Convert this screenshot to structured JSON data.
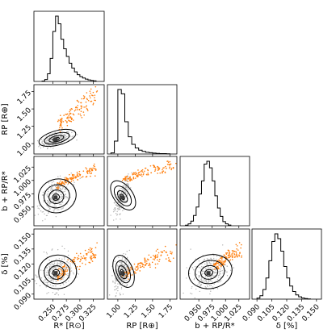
{
  "chart_data": {
    "type": "scatter",
    "subtype": "corner-plot",
    "colors": {
      "samples": "#b5b5b5",
      "outliers": "#ff7f0e",
      "lines": "#000000",
      "density_dark": "#3a3a3a"
    },
    "parameters": [
      {
        "key": "Rs",
        "label": "R* [R⊙]",
        "range": [
          0.215,
          0.345
        ],
        "ticks": [
          0.25,
          0.275,
          0.3,
          0.325
        ],
        "tick_labels": [
          "0.250",
          "0.275",
          "0.300",
          "0.325"
        ],
        "mode": 0.255
      },
      {
        "key": "Rp",
        "label": "RP [R⊕]",
        "range": [
          0.85,
          1.85
        ],
        "ticks": [
          1.0,
          1.25,
          1.5,
          1.75
        ],
        "tick_labels": [
          "1.00",
          "1.25",
          "1.50",
          "1.75"
        ],
        "mode": 1.06
      },
      {
        "key": "bRpRs",
        "label": "b + RP/R*",
        "range": [
          0.915,
          1.045
        ],
        "ticks": [
          0.95,
          0.975,
          1.0,
          1.025
        ],
        "tick_labels": [
          "0.950",
          "0.975",
          "1.000",
          "1.025"
        ],
        "mode": 0.968
      },
      {
        "key": "delta",
        "label": "δ [%]",
        "range": [
          0.085,
          0.155
        ],
        "ticks": [
          0.09,
          0.105,
          0.12,
          0.135,
          0.15
        ],
        "tick_labels": [
          "0.090",
          "0.105",
          "0.120",
          "0.135",
          "0.150"
        ],
        "mode": 0.111
      }
    ],
    "histograms": [
      {
        "param": "Rs",
        "bins": [
          0.23,
          0.235,
          0.24,
          0.245,
          0.25,
          0.255,
          0.26,
          0.265,
          0.27,
          0.275,
          0.28,
          0.285,
          0.29,
          0.295,
          0.3,
          0.305,
          0.31,
          0.315,
          0.32,
          0.325,
          0.33
        ],
        "counts": [
          2,
          10,
          40,
          120,
          260,
          340,
          300,
          220,
          170,
          130,
          95,
          70,
          50,
          35,
          25,
          18,
          12,
          8,
          5,
          3
        ]
      },
      {
        "param": "Rp",
        "bins": [
          0.9,
          0.95,
          1.0,
          1.05,
          1.1,
          1.15,
          1.2,
          1.25,
          1.3,
          1.35,
          1.4,
          1.45,
          1.5,
          1.55,
          1.6,
          1.65,
          1.7,
          1.75
        ],
        "counts": [
          5,
          60,
          300,
          280,
          150,
          80,
          45,
          28,
          18,
          12,
          8,
          6,
          4,
          3,
          2,
          2,
          1
        ]
      },
      {
        "param": "bRpRs",
        "bins": [
          0.925,
          0.93,
          0.935,
          0.94,
          0.945,
          0.95,
          0.955,
          0.96,
          0.965,
          0.97,
          0.975,
          0.98,
          0.985,
          0.99,
          0.995,
          1.0,
          1.005,
          1.01
        ],
        "counts": [
          3,
          10,
          25,
          55,
          100,
          170,
          240,
          330,
          345,
          310,
          240,
          160,
          95,
          50,
          22,
          10,
          4
        ]
      },
      {
        "param": "delta",
        "bins": [
          0.09,
          0.093,
          0.096,
          0.099,
          0.102,
          0.105,
          0.108,
          0.111,
          0.114,
          0.117,
          0.12,
          0.123,
          0.126,
          0.129,
          0.132,
          0.135,
          0.138,
          0.141,
          0.144
        ],
        "counts": [
          5,
          18,
          50,
          110,
          200,
          300,
          340,
          315,
          250,
          170,
          110,
          68,
          40,
          22,
          12,
          6,
          3,
          1
        ]
      }
    ],
    "pairs": [
      {
        "x": "Rs",
        "y": "Rp",
        "center": [
          0.255,
          1.06
        ],
        "spread": [
          0.012,
          0.045
        ],
        "rho": 0.55,
        "tail": [
          0.26,
          0.33,
          1.1,
          1.8
        ]
      },
      {
        "x": "Rs",
        "y": "bRpRs",
        "center": [
          0.255,
          0.968
        ],
        "spread": [
          0.012,
          0.014
        ],
        "rho": 0.45,
        "tail": [
          0.26,
          0.33,
          0.98,
          1.03
        ]
      },
      {
        "x": "Rp",
        "y": "bRpRs",
        "center": [
          1.06,
          0.968
        ],
        "spread": [
          0.045,
          0.014
        ],
        "rho": 0.75,
        "tail": [
          1.1,
          1.8,
          0.99,
          1.04
        ]
      },
      {
        "x": "Rs",
        "y": "delta",
        "center": [
          0.255,
          0.111
        ],
        "spread": [
          0.012,
          0.0075
        ],
        "rho": 0.1,
        "tail": [
          0.26,
          0.33,
          0.1,
          0.14
        ]
      },
      {
        "x": "Rp",
        "y": "delta",
        "center": [
          1.06,
          0.111
        ],
        "spread": [
          0.045,
          0.0075
        ],
        "rho": 0.3,
        "tail": [
          1.1,
          1.8,
          0.1,
          0.14
        ]
      },
      {
        "x": "bRpRs",
        "y": "delta",
        "center": [
          0.968,
          0.111
        ],
        "spread": [
          0.014,
          0.0075
        ],
        "rho": 0.35,
        "tail": [
          0.98,
          1.03,
          0.11,
          0.14
        ]
      }
    ]
  }
}
